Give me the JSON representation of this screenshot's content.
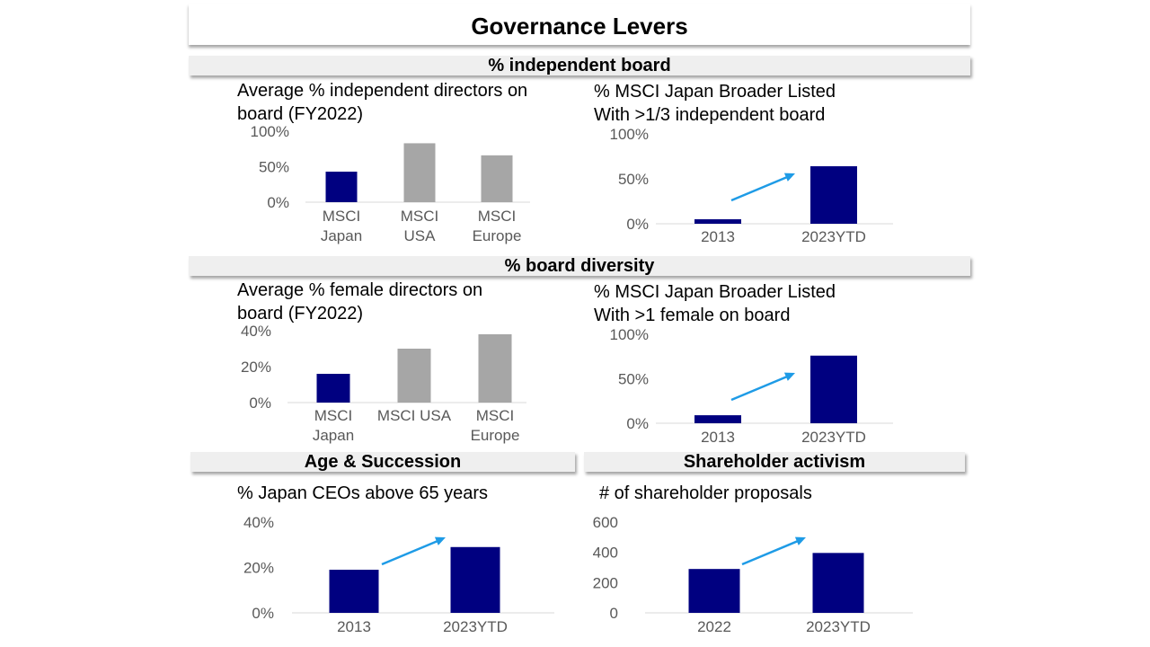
{
  "page_title": "Governance Levers",
  "sections": {
    "independent_board": "% independent board",
    "board_diversity": "% board diversity",
    "age_succession": "Age & Succession",
    "shareholder_activism": "Shareholder activism"
  },
  "colors": {
    "navy": "#000080",
    "gray": "#a6a6a6",
    "arrow": "#1e9be6"
  },
  "chart_data": [
    {
      "id": "c1",
      "type": "bar",
      "title_lines": [
        "Average % independent directors on",
        "board (FY2022)"
      ],
      "categories": [
        [
          "MSCI",
          "Japan"
        ],
        [
          "MSCI",
          "USA"
        ],
        [
          "MSCI",
          "Europe"
        ]
      ],
      "values": [
        43,
        83,
        66
      ],
      "bar_colors": [
        "navy",
        "gray",
        "gray"
      ],
      "ylim": [
        0,
        100
      ],
      "yticks": [
        "0%",
        "50%",
        "100%"
      ]
    },
    {
      "id": "c2",
      "type": "bar",
      "title_lines": [
        "% MSCI Japan Broader Listed",
        "With >1/3 independent board"
      ],
      "categories": [
        [
          "2013"
        ],
        [
          "2023YTD"
        ]
      ],
      "values": [
        5,
        64
      ],
      "bar_colors": [
        "navy",
        "navy"
      ],
      "ylim": [
        0,
        100
      ],
      "yticks": [
        "0%",
        "50%",
        "100%"
      ]
    },
    {
      "id": "c3",
      "type": "bar",
      "title_lines": [
        "Average % female directors on",
        "board  (FY2022)"
      ],
      "categories": [
        [
          "MSCI",
          "Japan"
        ],
        [
          "MSCI USA"
        ],
        [
          "MSCI",
          "Europe"
        ]
      ],
      "values": [
        16,
        30,
        38
      ],
      "bar_colors": [
        "navy",
        "gray",
        "gray"
      ],
      "ylim": [
        0,
        40
      ],
      "yticks": [
        "0%",
        "20%",
        "40%"
      ]
    },
    {
      "id": "c4",
      "type": "bar",
      "title_lines": [
        "% MSCI Japan Broader Listed",
        "With >1 female on board"
      ],
      "categories": [
        [
          "2013"
        ],
        [
          "2023YTD"
        ]
      ],
      "values": [
        9,
        76
      ],
      "bar_colors": [
        "navy",
        "navy"
      ],
      "ylim": [
        0,
        100
      ],
      "yticks": [
        "0%",
        "50%",
        "100%"
      ]
    },
    {
      "id": "c5",
      "type": "bar",
      "title_lines": [
        "% Japan CEOs above 65 years"
      ],
      "categories": [
        [
          "2013"
        ],
        [
          "2023YTD"
        ]
      ],
      "values": [
        19,
        29
      ],
      "bar_colors": [
        "navy",
        "navy"
      ],
      "ylim": [
        0,
        40
      ],
      "yticks": [
        "0%",
        "20%",
        "40%"
      ]
    },
    {
      "id": "c6",
      "type": "bar",
      "title_lines": [
        "# of shareholder proposals"
      ],
      "categories": [
        [
          "2022"
        ],
        [
          "2023YTD"
        ]
      ],
      "values": [
        290,
        396
      ],
      "bar_colors": [
        "navy",
        "navy"
      ],
      "ylim": [
        0,
        600
      ],
      "yticks": [
        "0",
        "200",
        "400",
        "600"
      ]
    }
  ]
}
